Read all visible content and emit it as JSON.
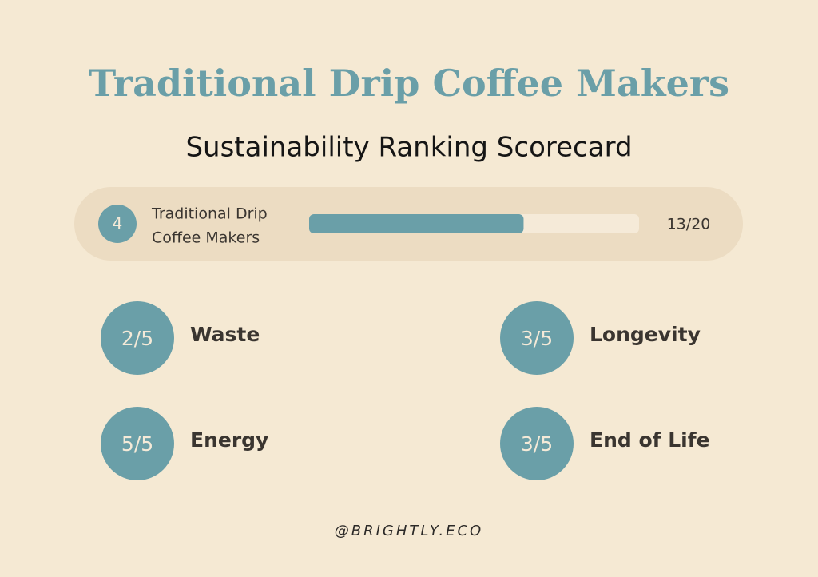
{
  "header": {
    "title": "Traditional Drip Coffee Makers",
    "subtitle": "Sustainability Ranking Scorecard"
  },
  "ranking": {
    "rank": 4,
    "name": [
      "Traditional Drip",
      "Coffee Makers"
    ],
    "score": {
      "value": 13,
      "max": 20,
      "label": "13/20"
    }
  },
  "criteria": [
    {
      "score": "2/5",
      "name": "Waste"
    },
    {
      "score": "3/5",
      "name": "Longevity"
    },
    {
      "score": "5/5",
      "name": "Energy"
    },
    {
      "score": "3/5",
      "name": "End of Life"
    }
  ],
  "footer": {
    "handle": "@BRIGHTLY.ECO"
  }
}
